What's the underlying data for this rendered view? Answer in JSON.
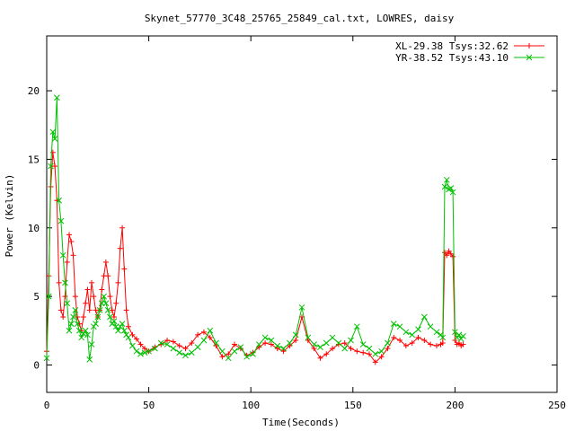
{
  "chart_data": {
    "type": "line",
    "title": "Skynet_57770_3C48_25765_25849_cal.txt, LOWRES, daisy",
    "xlabel": "Time(Seconds)",
    "ylabel": "Power (Kelvin)",
    "xlim": [
      0,
      250
    ],
    "ylim": [
      -2,
      24
    ],
    "xticks": [
      "0",
      "50",
      "100",
      "150",
      "200",
      "250"
    ],
    "yticks": [
      "0",
      "5",
      "10",
      "15",
      "20"
    ],
    "xtick_values": [
      0,
      50,
      100,
      150,
      200,
      250
    ],
    "ytick_values": [
      0,
      5,
      10,
      15,
      20
    ],
    "grid": false,
    "legend_position": "top-right",
    "series": [
      {
        "name": "XL-29.38 Tsys:32.62",
        "color": "#ff0000",
        "marker": "plus",
        "x": [
          0,
          1,
          2,
          3,
          4,
          5,
          6,
          7,
          8,
          9,
          10,
          11,
          12,
          13,
          14,
          15,
          16,
          17,
          18,
          19,
          20,
          21,
          22,
          23,
          24,
          25,
          26,
          27,
          28,
          29,
          30,
          31,
          32,
          33,
          34,
          35,
          36,
          37,
          38,
          39,
          40,
          42,
          44,
          46,
          48,
          50,
          53,
          56,
          59,
          62,
          65,
          68,
          71,
          74,
          77,
          80,
          83,
          86,
          89,
          92,
          95,
          98,
          101,
          104,
          107,
          110,
          113,
          116,
          119,
          122,
          125,
          128,
          131,
          134,
          137,
          140,
          143,
          146,
          149,
          152,
          155,
          158,
          161,
          164,
          167,
          170,
          173,
          176,
          179,
          182,
          185,
          188,
          191,
          193,
          194,
          195,
          196,
          197,
          198,
          199,
          200,
          201,
          202,
          203,
          204
        ],
        "y": [
          1.0,
          6.5,
          13.0,
          15.5,
          14.5,
          12.0,
          6.0,
          4.0,
          3.5,
          5.0,
          7.5,
          9.5,
          9.0,
          8.0,
          5.0,
          3.5,
          3.0,
          2.5,
          3.5,
          4.5,
          5.5,
          4.0,
          6.0,
          5.0,
          4.0,
          3.5,
          4.0,
          5.5,
          6.5,
          7.5,
          6.5,
          5.0,
          4.0,
          3.5,
          4.5,
          6.0,
          8.5,
          10.0,
          7.0,
          4.0,
          2.8,
          2.2,
          1.9,
          1.5,
          1.2,
          1.0,
          1.3,
          1.5,
          1.8,
          1.7,
          1.4,
          1.2,
          1.6,
          2.2,
          2.4,
          2.0,
          1.4,
          0.6,
          0.8,
          1.5,
          1.2,
          0.7,
          0.9,
          1.3,
          1.6,
          1.5,
          1.2,
          1.0,
          1.4,
          1.8,
          3.5,
          1.8,
          1.2,
          0.5,
          0.8,
          1.2,
          1.5,
          1.6,
          1.2,
          1.0,
          0.9,
          0.8,
          0.2,
          0.6,
          1.2,
          2.0,
          1.8,
          1.4,
          1.6,
          2.0,
          1.8,
          1.5,
          1.4,
          1.5,
          1.6,
          8.2,
          8.0,
          8.3,
          8.1,
          7.9,
          1.8,
          1.5,
          1.6,
          1.4,
          1.5
        ]
      },
      {
        "name": "YR-38.52 Tsys:43.10",
        "color": "#00c000",
        "marker": "x",
        "x": [
          0,
          1,
          2,
          3,
          4,
          5,
          6,
          7,
          8,
          9,
          10,
          11,
          12,
          13,
          14,
          15,
          16,
          17,
          18,
          19,
          20,
          21,
          22,
          23,
          24,
          25,
          26,
          27,
          28,
          29,
          30,
          31,
          32,
          33,
          34,
          35,
          36,
          37,
          38,
          39,
          40,
          42,
          44,
          46,
          48,
          50,
          53,
          56,
          59,
          62,
          65,
          68,
          71,
          74,
          77,
          80,
          83,
          86,
          89,
          92,
          95,
          98,
          101,
          104,
          107,
          110,
          113,
          116,
          119,
          122,
          125,
          128,
          131,
          134,
          137,
          140,
          143,
          146,
          149,
          152,
          155,
          158,
          161,
          164,
          167,
          170,
          173,
          176,
          179,
          182,
          185,
          188,
          191,
          193,
          194,
          195,
          196,
          197,
          198,
          199,
          200,
          201,
          202,
          203,
          204
        ],
        "y": [
          0.5,
          5.0,
          14.5,
          17.0,
          16.5,
          19.5,
          12.0,
          10.5,
          8.0,
          6.0,
          4.5,
          2.5,
          3.0,
          3.5,
          4.0,
          3.0,
          2.5,
          2.0,
          2.3,
          2.5,
          2.2,
          0.4,
          1.5,
          2.8,
          3.0,
          3.5,
          4.0,
          4.5,
          5.0,
          4.5,
          4.0,
          3.5,
          3.0,
          3.2,
          2.8,
          2.5,
          2.8,
          3.0,
          2.5,
          2.2,
          2.0,
          1.4,
          1.0,
          0.8,
          0.9,
          1.0,
          1.2,
          1.6,
          1.5,
          1.2,
          0.9,
          0.7,
          0.9,
          1.3,
          1.8,
          2.5,
          1.6,
          1.0,
          0.5,
          1.0,
          1.3,
          0.6,
          0.8,
          1.5,
          2.0,
          1.8,
          1.4,
          1.2,
          1.6,
          2.2,
          4.2,
          2.0,
          1.5,
          1.3,
          1.6,
          2.0,
          1.6,
          1.2,
          1.8,
          2.8,
          1.5,
          1.2,
          0.8,
          1.0,
          1.6,
          3.0,
          2.8,
          2.4,
          2.2,
          2.6,
          3.5,
          2.8,
          2.4,
          2.2,
          2.0,
          13.0,
          13.5,
          12.8,
          12.9,
          12.6,
          2.4,
          2.0,
          2.2,
          1.9,
          2.1
        ]
      }
    ]
  }
}
